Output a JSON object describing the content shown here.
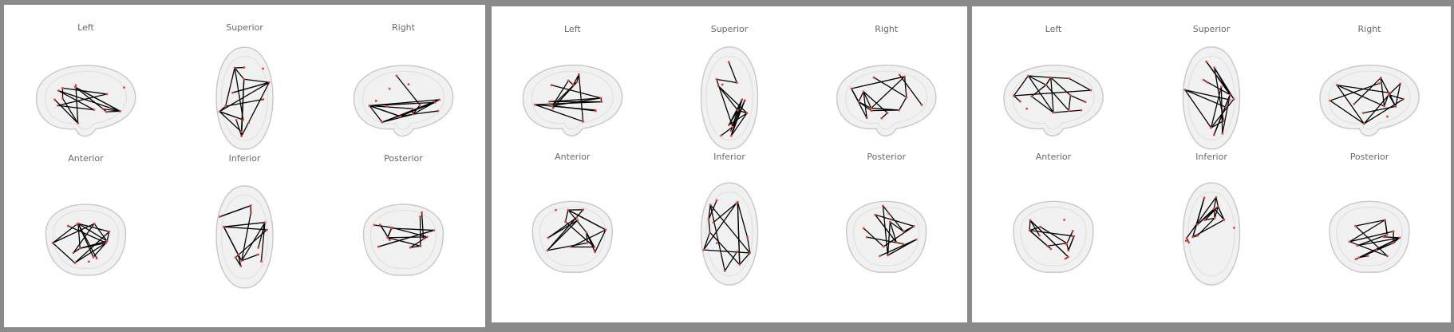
{
  "figure": {
    "panels": [
      {
        "id": "panel-1",
        "views": [
          "Left",
          "Superior",
          "Right",
          "Anterior",
          "Inferior",
          "Posterior"
        ]
      },
      {
        "id": "panel-2",
        "views": [
          "Left",
          "Superior",
          "Right",
          "Anterior",
          "Inferior",
          "Posterior"
        ]
      },
      {
        "id": "panel-3",
        "views": [
          "Left",
          "Superior",
          "Right",
          "Anterior",
          "Inferior",
          "Posterior"
        ]
      }
    ],
    "colors": {
      "edge": "#000000",
      "node": "#e0413a",
      "brain_fill": "#f1f1f1",
      "brain_outline": "#c8c8c8",
      "label": "#6a6a6a"
    }
  }
}
